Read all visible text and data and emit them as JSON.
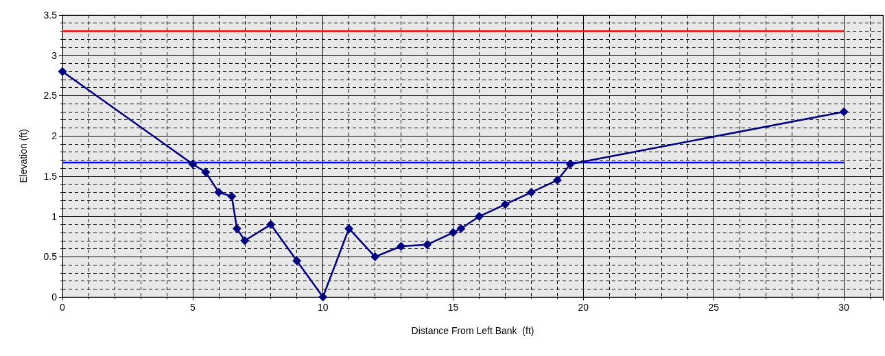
{
  "chart_data": {
    "type": "line",
    "xlabel": "Distance From Left Bank  (ft)",
    "ylabel": "Elevation (ft)",
    "xlim": [
      0,
      31.5
    ],
    "xticks": [
      0,
      5,
      10,
      15,
      20,
      25,
      30
    ],
    "ylim": [
      0,
      3.5
    ],
    "yticks": [
      0,
      0.5,
      1,
      1.5,
      2,
      2.5,
      3,
      3.5
    ],
    "grid": true,
    "marker": "diamond",
    "line_style": "solid",
    "series": [
      {
        "color": "#ff0000",
        "marker": "none",
        "x": [
          0,
          30
        ],
        "values": [
          3.3,
          3.3
        ]
      },
      {
        "color": "#0000ff",
        "marker": "none",
        "x": [
          0,
          30
        ],
        "values": [
          1.67,
          1.67
        ]
      },
      {
        "color": "#000080",
        "x": [
          0,
          5,
          5.5,
          6,
          6.5,
          6.7,
          7,
          8,
          9,
          10,
          11,
          12,
          13,
          14,
          15,
          15.3,
          16,
          17,
          18,
          19,
          19.5,
          30
        ],
        "values": [
          2.8,
          1.65,
          1.55,
          1.3,
          1.25,
          0.85,
          0.7,
          0.9,
          0.45,
          0,
          0.85,
          0.5,
          0.63,
          0.65,
          0.8,
          0.85,
          1.0,
          1.15,
          1.3,
          1.45,
          1.65,
          2.3
        ]
      }
    ]
  }
}
